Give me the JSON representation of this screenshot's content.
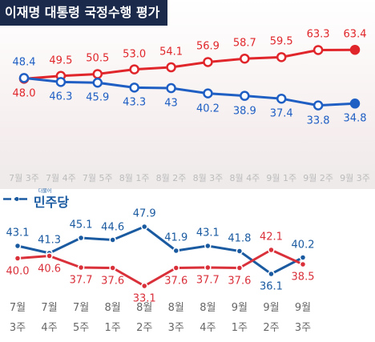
{
  "chart_data": [
    {
      "type": "line",
      "title": "이재명 대통령 국정수행 평가",
      "categories": [
        "7월 3주",
        "7월 4주",
        "7월 5주",
        "8월 1주",
        "8월 2주",
        "8월 3주",
        "8월 4주",
        "9월 1주",
        "9월 2주",
        "9월 3주"
      ],
      "series": [
        {
          "color": "#e0262a",
          "values": [
            48.0,
            49.5,
            50.5,
            53.0,
            54.1,
            56.9,
            58.7,
            59.5,
            63.3,
            63.4
          ],
          "value_labels": [
            "48.0",
            "49.5",
            "50.5",
            "53.0",
            "54.1",
            "56.9",
            "58.7",
            "59.5",
            "63.3",
            "63.4"
          ]
        },
        {
          "color": "#1f5fc4",
          "values": [
            48.4,
            46.3,
            45.9,
            43.3,
            43.0,
            40.2,
            38.9,
            37.4,
            33.8,
            34.8
          ]
        }
      ],
      "ylim": [
        20,
        75
      ]
    },
    {
      "type": "line",
      "legend_prefix": "더불어",
      "categories": [
        "7월 3주",
        "7월 4주",
        "7월 5주",
        "8월 1주",
        "8월 2주",
        "8월 3주",
        "8월 4주",
        "9월 1주",
        "9월 2주",
        "9월 3주"
      ],
      "series": [
        {
          "name": "민주당",
          "color": "#1a5aa0",
          "values": [
            43.1,
            41.3,
            45.1,
            44.6,
            47.9,
            41.9,
            43.1,
            41.8,
            36.1,
            40.2
          ]
        },
        {
          "color": "#d9303a",
          "values": [
            40.0,
            40.6,
            37.7,
            37.6,
            33.1,
            37.6,
            37.7,
            37.6,
            42.1,
            38.5
          ],
          "value_labels": [
            "40.0",
            "40.6",
            "37.7",
            "37.6",
            "33.1",
            "37.6",
            "37.7",
            "37.6",
            "42.1",
            "38.5"
          ]
        }
      ],
      "ylim": [
        30,
        50
      ]
    }
  ]
}
